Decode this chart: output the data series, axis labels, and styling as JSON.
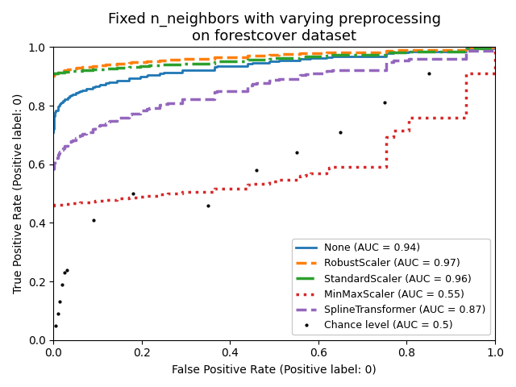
{
  "title": "Fixed n_neighbors with varying preprocessing\non forestcover dataset",
  "xlabel": "False Positive Rate (Positive label: 0)",
  "ylabel": "True Positive Rate (Positive label: 0)",
  "xlim": [
    0.0,
    1.0
  ],
  "ylim": [
    0.0,
    1.0
  ],
  "curves": [
    {
      "label": "None (AUC = 0.94)",
      "color": "#1f77b4",
      "linestyle": "-",
      "linewidth": 2.0,
      "auc": 0.94,
      "tpr_at_0": 0.71,
      "tpr_at_01": 0.84,
      "tpr_at_02": 0.88,
      "tpr_at_05": 0.94,
      "tpr_at_08": 0.99,
      "concavity": 3.0
    },
    {
      "label": "RobustScaler (AUC = 0.97)",
      "color": "#ff7f0e",
      "linestyle": "--",
      "linewidth": 2.5,
      "auc": 0.97,
      "tpr_at_0": 0.9,
      "tpr_at_01": 0.96,
      "tpr_at_02": 0.97,
      "tpr_at_05": 0.99,
      "tpr_at_08": 1.0,
      "concavity": 5.0
    },
    {
      "label": "StandardScaler (AUC = 0.96)",
      "color": "#2ca02c",
      "linestyle": "-.",
      "linewidth": 2.5,
      "auc": 0.96,
      "tpr_at_0": 0.91,
      "tpr_at_01": 0.93,
      "tpr_at_02": 0.95,
      "tpr_at_05": 0.97,
      "tpr_at_08": 0.99,
      "concavity": 4.0
    },
    {
      "label": "MinMaxScaler (AUC = 0.55)",
      "color": "#d62728",
      "linestyle": ":",
      "linewidth": 2.5,
      "auc": 0.55,
      "tpr_at_0": 0.46,
      "tpr_at_01": 0.48,
      "tpr_at_02": 0.5,
      "tpr_at_05": 0.56,
      "tpr_at_08": 0.63,
      "concavity": 0.2
    },
    {
      "label": "SplineTransformer (AUC = 0.87)",
      "color": "#9467bd",
      "linestyle": "--",
      "linewidth": 2.5,
      "auc": 0.87,
      "tpr_at_0": 0.58,
      "tpr_at_01": 0.74,
      "tpr_at_02": 0.81,
      "tpr_at_05": 0.9,
      "tpr_at_08": 0.95,
      "concavity": 2.0
    }
  ],
  "chance_fpr": [
    0.005,
    0.01,
    0.015,
    0.02,
    0.025,
    0.03,
    0.09,
    0.18,
    0.35,
    0.46,
    0.55,
    0.65,
    0.75,
    0.85
  ],
  "chance_tpr": [
    0.05,
    0.09,
    0.13,
    0.19,
    0.23,
    0.24,
    0.41,
    0.5,
    0.46,
    0.58,
    0.64,
    0.71,
    0.81,
    0.91
  ],
  "chance_label": "Chance level (AUC = 0.5)",
  "chance_color": "#000000",
  "legend_loc": "lower right",
  "title_fontsize": 13,
  "label_fontsize": 10
}
